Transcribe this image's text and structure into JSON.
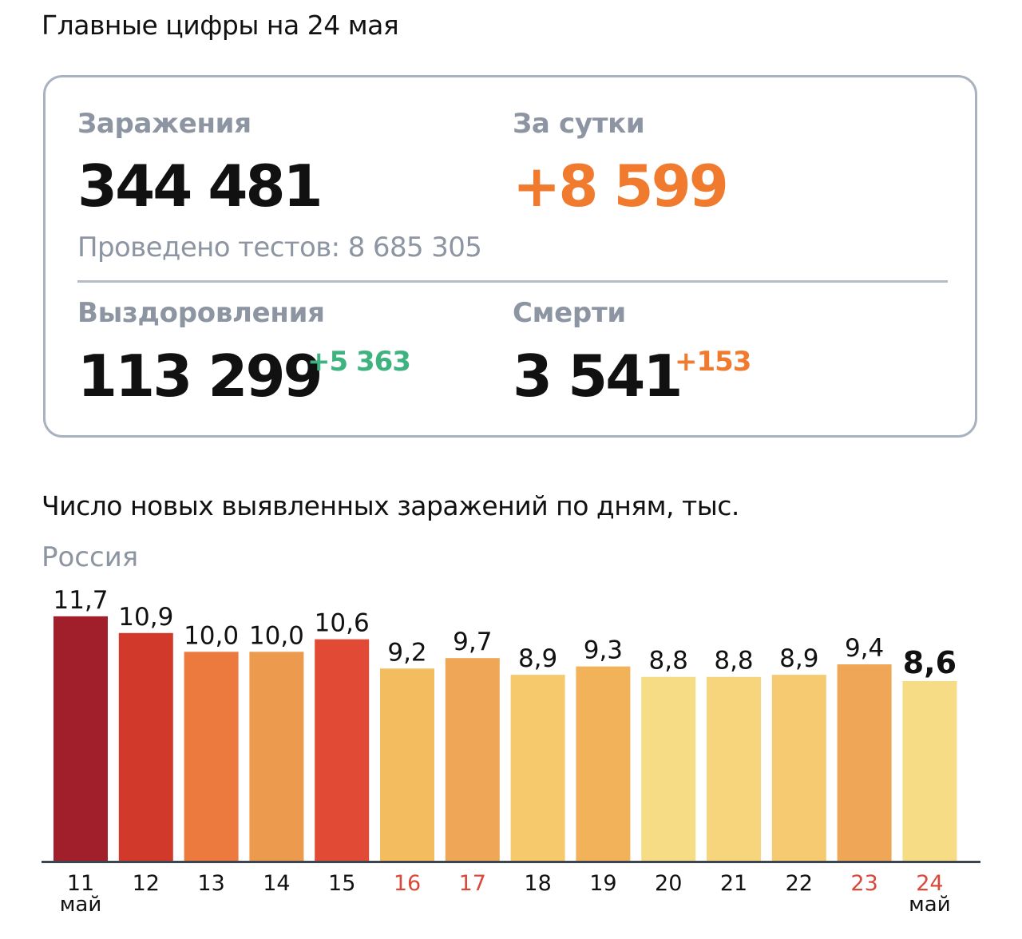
{
  "headline": "Главные цифры на 24 мая",
  "stats": {
    "cases_label": "Заражения",
    "cases_value": "344 481",
    "daily_label": "За сутки",
    "daily_value": "+8 599",
    "tests_text": "Проведено тестов: 8 685 305",
    "recovered_label": "Выздоровления",
    "recovered_value": "113 299",
    "recovered_delta": "+5 363",
    "deaths_label": "Смерти",
    "deaths_value": "3 541",
    "deaths_delta": "+153"
  },
  "colors": {
    "daily": "#f07a2e",
    "recovered_delta": "#3fb37f",
    "deaths_delta": "#f07a2e",
    "weekend_tick": "#d9483b",
    "axis": "#3d4550"
  },
  "chart_data": {
    "type": "bar",
    "title": "Число новых выявленных заражений по дням, тыс.",
    "subtitle": "Россия",
    "categories": [
      "11",
      "12",
      "13",
      "14",
      "15",
      "16",
      "17",
      "18",
      "19",
      "20",
      "21",
      "22",
      "23",
      "24"
    ],
    "month_labels": [
      "май",
      "",
      "",
      "",
      "",
      "",
      "",
      "",
      "",
      "",
      "",
      "",
      "",
      "май"
    ],
    "values": [
      11.7,
      10.9,
      10.0,
      10.0,
      10.6,
      9.2,
      9.7,
      8.9,
      9.3,
      8.8,
      8.8,
      8.9,
      9.4,
      8.6
    ],
    "value_labels": [
      "11,7",
      "10,9",
      "10,0",
      "10,0",
      "10,6",
      "9,2",
      "9,7",
      "8,9",
      "9,3",
      "8,8",
      "8,8",
      "8,9",
      "9,4",
      "8,6"
    ],
    "bar_colors": [
      "#a01f2b",
      "#d13a2b",
      "#ec7a3f",
      "#ec9a4e",
      "#e14a34",
      "#f3bd5f",
      "#efa656",
      "#f5c96c",
      "#f2b259",
      "#f7dc86",
      "#f6d57c",
      "#f5ca70",
      "#efa656",
      "#f7dc86"
    ],
    "weekend": [
      false,
      false,
      false,
      false,
      false,
      true,
      true,
      false,
      false,
      false,
      false,
      false,
      true,
      true
    ],
    "highlight_last": true,
    "ylim": [
      0,
      12
    ],
    "grid": false,
    "legend": "none"
  }
}
